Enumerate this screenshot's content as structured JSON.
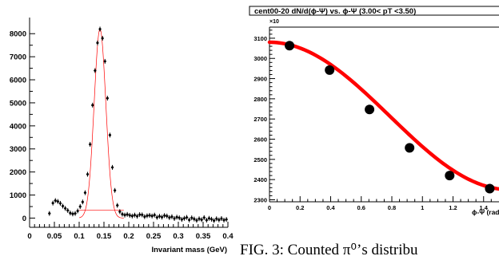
{
  "chart_data": [
    {
      "type": "scatter",
      "title": "",
      "xlabel": "Invariant mass (GeV)",
      "ylabel": "",
      "xlim": [
        0,
        0.4
      ],
      "ylim": [
        -400,
        8700
      ],
      "x_ticks": [
        "0",
        "0.05",
        "0.1",
        "0.15",
        "0.2",
        "0.25",
        "0.3",
        "0.35",
        "0.4"
      ],
      "y_ticks": [
        "0",
        "1000",
        "2000",
        "3000",
        "4000",
        "5000",
        "6000",
        "7000",
        "8000"
      ],
      "series": [
        {
          "points": [
            [
              0.04,
              200
            ],
            [
              0.047,
              650
            ],
            [
              0.052,
              760
            ],
            [
              0.057,
              720
            ],
            [
              0.062,
              640
            ],
            [
              0.067,
              520
            ],
            [
              0.072,
              420
            ],
            [
              0.077,
              330
            ],
            [
              0.082,
              220
            ],
            [
              0.087,
              180
            ],
            [
              0.092,
              200
            ],
            [
              0.097,
              310
            ],
            [
              0.102,
              500
            ],
            [
              0.107,
              700
            ],
            [
              0.112,
              1100
            ],
            [
              0.117,
              1900
            ],
            [
              0.122,
              3200
            ],
            [
              0.127,
              4900
            ],
            [
              0.132,
              6400
            ],
            [
              0.137,
              7600
            ],
            [
              0.142,
              8200
            ],
            [
              0.147,
              7800
            ],
            [
              0.152,
              6800
            ],
            [
              0.157,
              5200
            ],
            [
              0.162,
              3600
            ],
            [
              0.167,
              2200
            ],
            [
              0.172,
              1200
            ],
            [
              0.177,
              550
            ],
            [
              0.182,
              280
            ],
            [
              0.187,
              170
            ],
            [
              0.192,
              130
            ],
            [
              0.197,
              160
            ],
            [
              0.202,
              120
            ],
            [
              0.207,
              90
            ],
            [
              0.212,
              130
            ],
            [
              0.217,
              80
            ],
            [
              0.222,
              150
            ],
            [
              0.227,
              140
            ],
            [
              0.232,
              60
            ],
            [
              0.237,
              100
            ],
            [
              0.242,
              120
            ],
            [
              0.247,
              90
            ],
            [
              0.252,
              130
            ],
            [
              0.257,
              30
            ],
            [
              0.262,
              80
            ],
            [
              0.267,
              40
            ],
            [
              0.272,
              110
            ],
            [
              0.277,
              90
            ],
            [
              0.282,
              20
            ],
            [
              0.287,
              60
            ],
            [
              0.292,
              -20
            ],
            [
              0.297,
              40
            ],
            [
              0.302,
              10
            ],
            [
              0.307,
              -60
            ],
            [
              0.312,
              -10
            ],
            [
              0.317,
              30
            ],
            [
              0.322,
              -80
            ],
            [
              0.327,
              10
            ],
            [
              0.332,
              -40
            ],
            [
              0.337,
              -100
            ],
            [
              0.342,
              -30
            ],
            [
              0.347,
              -70
            ],
            [
              0.352,
              20
            ],
            [
              0.357,
              -90
            ],
            [
              0.362,
              -10
            ],
            [
              0.367,
              -50
            ],
            [
              0.372,
              -110
            ],
            [
              0.377,
              -30
            ],
            [
              0.382,
              -80
            ],
            [
              0.387,
              -20
            ],
            [
              0.392,
              -90
            ],
            [
              0.397,
              -60
            ]
          ],
          "color": "#000000"
        }
      ],
      "fit": {
        "type": "gaussian",
        "color": "#ff0000",
        "mean": 0.142,
        "sigma": 0.0118,
        "amp": 8200,
        "x_range": [
          0.1,
          0.19
        ],
        "baseline_range": [
          0.1,
          0.19
        ],
        "baseline_value": 350
      }
    },
    {
      "type": "scatter",
      "title": "cent00-20 dN/d(ϕ-Ψ) vs. ϕ-Ψ (3.00< pT <3.50)",
      "xlabel": "ϕ-Ψ (rad",
      "ylabel": "",
      "y_multiplier": "×10",
      "xlim": [
        0,
        1.6
      ],
      "ylim": [
        2290,
        3155
      ],
      "x_ticks": [
        "0",
        "0.2",
        "0.4",
        "0.6",
        "0.8",
        "1",
        "1.2",
        "1.4"
      ],
      "y_ticks": [
        "2300",
        "2400",
        "2500",
        "2600",
        "2700",
        "2800",
        "2900",
        "3000",
        "3100"
      ],
      "series": [
        {
          "points": [
            [
              0.131,
              3063
            ],
            [
              0.393,
              2942
            ],
            [
              0.654,
              2747
            ],
            [
              0.916,
              2557
            ],
            [
              1.178,
              2420
            ],
            [
              1.44,
              2355
            ]
          ],
          "color": "#000000"
        }
      ],
      "fit": {
        "type": "cosine",
        "color": "#ff0000",
        "mean": 2715,
        "amplitude": 365,
        "x_range": [
          0,
          1.6
        ]
      }
    }
  ],
  "caption": "FIG. 3:  Counted π⁰’s distribu"
}
